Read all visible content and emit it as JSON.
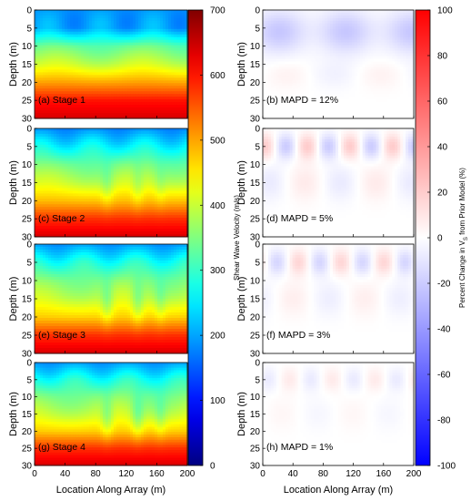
{
  "chart_data": {
    "type": "heatmap",
    "x_axis": {
      "label": "Location Along Array (m)",
      "range": [
        0,
        200
      ],
      "ticks": [
        0,
        40,
        80,
        120,
        160,
        200
      ]
    },
    "y_axis": {
      "label": "Depth (m)",
      "range": [
        0,
        30
      ],
      "inverted": true,
      "ticks": [
        0,
        5,
        10,
        15,
        20,
        25,
        30
      ]
    },
    "vs_colorbar": {
      "label": "Shear Wave Velocity (m/s)",
      "range": [
        0,
        700
      ],
      "ticks": [
        0,
        100,
        200,
        300,
        400,
        500,
        600,
        700
      ],
      "colormap": "jet"
    },
    "change_colorbar": {
      "label_pre": "Percent Change in V",
      "label_sub": "S",
      "label_post": " from Prior Model (%)",
      "range": [
        -100,
        100
      ],
      "ticks": [
        -100,
        -80,
        -60,
        -40,
        -20,
        0,
        20,
        40,
        60,
        80,
        100
      ],
      "colormap": "blue-white-red"
    },
    "vs_panels": [
      {
        "label": "(a) Stage 1",
        "profile_depths": [
          0,
          5,
          10,
          15,
          20,
          25,
          30
        ],
        "profile_vs": [
          190,
          200,
          330,
          400,
          500,
          600,
          640
        ]
      },
      {
        "label": "(c) Stage 2",
        "profile_depths": [
          0,
          5,
          10,
          15,
          20,
          25,
          30
        ],
        "profile_vs": [
          180,
          260,
          340,
          400,
          480,
          580,
          640
        ]
      },
      {
        "label": "(e) Stage 3",
        "profile_depths": [
          0,
          5,
          10,
          15,
          20,
          25,
          30
        ],
        "profile_vs": [
          190,
          280,
          350,
          400,
          470,
          580,
          640
        ]
      },
      {
        "label": "(g) Stage 4",
        "profile_depths": [
          0,
          5,
          10,
          15,
          20,
          25,
          30
        ],
        "profile_vs": [
          190,
          280,
          350,
          400,
          470,
          580,
          640
        ]
      }
    ],
    "change_panels": [
      {
        "label": "(b) MAPD = 12%",
        "mapd_percent": 12,
        "peak_change_percent": -22
      },
      {
        "label": "(d) MAPD = 5%",
        "mapd_percent": 5,
        "peak_change_percent": 20
      },
      {
        "label": "(f) MAPD = 3%",
        "mapd_percent": 3,
        "peak_change_percent": 16
      },
      {
        "label": "(h) MAPD = 1%",
        "mapd_percent": 1,
        "peak_change_percent": 8
      }
    ]
  }
}
